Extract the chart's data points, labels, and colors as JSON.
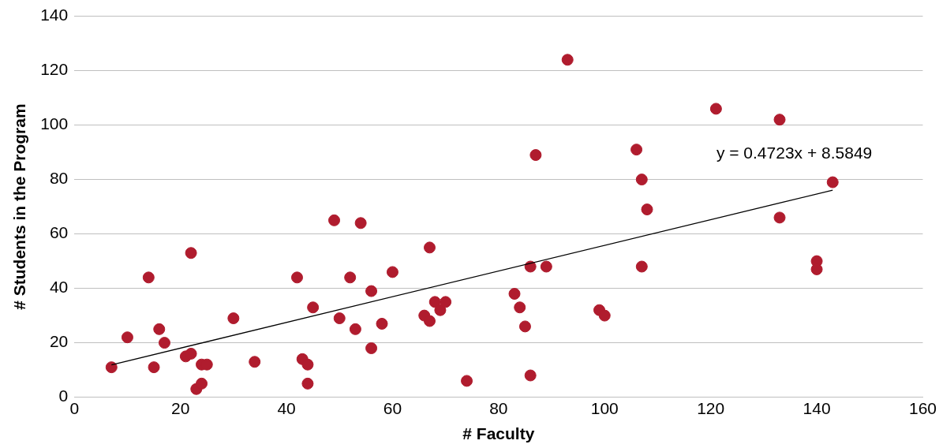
{
  "chart_data": {
    "type": "scatter",
    "xlabel": "# Faculty",
    "ylabel": "# Students in the Program",
    "xlim": [
      0,
      160
    ],
    "xticks": [
      0,
      20,
      40,
      60,
      80,
      100,
      120,
      140,
      160
    ],
    "ylim": [
      0,
      140
    ],
    "yticks": [
      0,
      20,
      40,
      60,
      80,
      100,
      120,
      140
    ],
    "grid": "y",
    "legend": false,
    "marker": "circle",
    "annotations": [
      "y = 0.4723x + 8.5849"
    ],
    "series": [
      {
        "color": "#b01c2e",
        "x": [
          7,
          10,
          14,
          15,
          16,
          17,
          21,
          22,
          22,
          23,
          24,
          24,
          25,
          30,
          34,
          42,
          43,
          44,
          44,
          45,
          49,
          50,
          52,
          53,
          54,
          56,
          56,
          58,
          60,
          66,
          67,
          67,
          68,
          69,
          70,
          74,
          83,
          84,
          85,
          86,
          86,
          87,
          89,
          93,
          99,
          100,
          106,
          107,
          107,
          108,
          121,
          133,
          133,
          140,
          140,
          143
        ],
        "values": [
          11,
          22,
          44,
          11,
          25,
          20,
          15,
          16,
          53,
          3,
          5,
          12,
          12,
          29,
          13,
          44,
          14,
          12,
          5,
          33,
          65,
          29,
          44,
          25,
          64,
          39,
          18,
          27,
          46,
          30,
          28,
          55,
          35,
          32,
          35,
          6,
          38,
          33,
          26,
          48,
          8,
          89,
          48,
          124,
          32,
          30,
          91,
          80,
          48,
          69,
          106,
          102,
          66,
          50,
          47,
          79
        ]
      },
      {
        "type": "line",
        "color": "#000000",
        "x": [
          7,
          143
        ],
        "values": [
          11.9,
          76.1
        ],
        "marker": "none",
        "line_style": "solid"
      }
    ]
  }
}
